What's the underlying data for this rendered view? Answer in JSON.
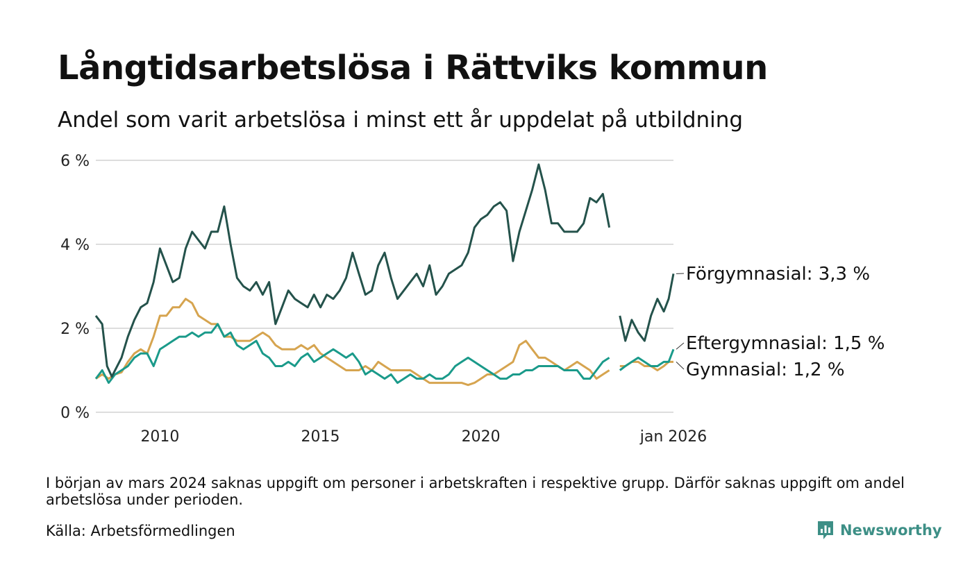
{
  "header": {
    "title": "Långtidsarbetslösa i Rättviks kommun",
    "subtitle": "Andel som varit arbetslösa i minst ett år uppdelat på utbildning"
  },
  "footer": {
    "note": "I början av mars 2024 saknas uppgift om personer i arbetskraften i respektive grupp. Därför saknas uppgift om andel arbetslösa under perioden.",
    "source": "Källa: Arbetsförmedlingen",
    "brand": "Newsworthy",
    "brand_color": "#3d8f86"
  },
  "chart_data": {
    "type": "line",
    "title": "Långtidsarbetslösa i Rättviks kommun",
    "xlabel": "",
    "ylabel": "",
    "ylim": [
      0,
      6
    ],
    "xlim": [
      2008.0,
      2026.0
    ],
    "yticks": [
      {
        "value": 0,
        "label": "0 %"
      },
      {
        "value": 2,
        "label": "2 %"
      },
      {
        "value": 4,
        "label": "4 %"
      },
      {
        "value": 6,
        "label": "6 %"
      }
    ],
    "xticks": [
      {
        "value": 2010,
        "label": "2010"
      },
      {
        "value": 2015,
        "label": "2015"
      },
      {
        "value": 2020,
        "label": "2020"
      },
      {
        "value": 2026,
        "label": "jan 2026"
      }
    ],
    "gap": [
      2024.17,
      2024.33
    ],
    "series": [
      {
        "name": "Förgymnasial",
        "label": "Förgymnasial: 3,3 %",
        "color": "#24524b",
        "x": [
          2008.0,
          2008.2,
          2008.35,
          2008.5,
          2008.8,
          2009.0,
          2009.2,
          2009.4,
          2009.6,
          2009.8,
          2010.0,
          2010.2,
          2010.4,
          2010.6,
          2010.8,
          2011.0,
          2011.2,
          2011.4,
          2011.6,
          2011.8,
          2012.0,
          2012.2,
          2012.4,
          2012.6,
          2012.8,
          2013.0,
          2013.2,
          2013.4,
          2013.6,
          2013.8,
          2014.0,
          2014.2,
          2014.4,
          2014.6,
          2014.8,
          2015.0,
          2015.2,
          2015.4,
          2015.6,
          2015.8,
          2016.0,
          2016.2,
          2016.4,
          2016.6,
          2016.8,
          2017.0,
          2017.2,
          2017.4,
          2017.6,
          2017.8,
          2018.0,
          2018.2,
          2018.4,
          2018.6,
          2018.8,
          2019.0,
          2019.2,
          2019.4,
          2019.6,
          2019.8,
          2020.0,
          2020.2,
          2020.4,
          2020.6,
          2020.8,
          2021.0,
          2021.2,
          2021.4,
          2021.6,
          2021.8,
          2022.0,
          2022.2,
          2022.4,
          2022.6,
          2022.8,
          2023.0,
          2023.2,
          2023.4,
          2023.6,
          2023.8,
          2024.0,
          2024.17,
          null,
          2024.33,
          2024.5,
          2024.7,
          2024.9,
          2025.1,
          2025.3,
          2025.5,
          2025.7,
          2025.85,
          2026.0
        ],
        "values": [
          2.3,
          2.1,
          1.1,
          0.85,
          1.3,
          1.8,
          2.2,
          2.5,
          2.6,
          3.1,
          3.9,
          3.5,
          3.1,
          3.2,
          3.9,
          4.3,
          4.1,
          3.9,
          4.3,
          4.3,
          4.9,
          4.0,
          3.2,
          3.0,
          2.9,
          3.1,
          2.8,
          3.1,
          2.1,
          2.5,
          2.9,
          2.7,
          2.6,
          2.5,
          2.8,
          2.5,
          2.8,
          2.7,
          2.9,
          3.2,
          3.8,
          3.3,
          2.8,
          2.9,
          3.5,
          3.8,
          3.2,
          2.7,
          2.9,
          3.1,
          3.3,
          3.0,
          3.5,
          2.8,
          3.0,
          3.3,
          3.4,
          3.5,
          3.8,
          4.4,
          4.6,
          4.7,
          4.9,
          5.0,
          4.8,
          3.6,
          4.3,
          4.8,
          5.3,
          5.9,
          5.3,
          4.5,
          4.5,
          4.3,
          4.3,
          4.3,
          4.5,
          5.1,
          5.0,
          5.2,
          4.4,
          null,
          null,
          2.3,
          1.7,
          2.2,
          1.9,
          1.7,
          2.3,
          2.7,
          2.4,
          2.7,
          3.3
        ]
      },
      {
        "name": "Eftergymnasial",
        "label": "Eftergymnasial: 1,5 %",
        "color": "#1a9a8a",
        "x": [
          2008.0,
          2008.2,
          2008.4,
          2008.6,
          2008.8,
          2009.0,
          2009.2,
          2009.4,
          2009.6,
          2009.8,
          2010.0,
          2010.2,
          2010.4,
          2010.6,
          2010.8,
          2011.0,
          2011.2,
          2011.4,
          2011.6,
          2011.8,
          2012.0,
          2012.2,
          2012.4,
          2012.6,
          2012.8,
          2013.0,
          2013.2,
          2013.4,
          2013.6,
          2013.8,
          2014.0,
          2014.2,
          2014.4,
          2014.6,
          2014.8,
          2015.0,
          2015.2,
          2015.4,
          2015.6,
          2015.8,
          2016.0,
          2016.2,
          2016.4,
          2016.6,
          2016.8,
          2017.0,
          2017.2,
          2017.4,
          2017.6,
          2017.8,
          2018.0,
          2018.2,
          2018.4,
          2018.6,
          2018.8,
          2019.0,
          2019.2,
          2019.4,
          2019.6,
          2019.8,
          2020.0,
          2020.2,
          2020.4,
          2020.6,
          2020.8,
          2021.0,
          2021.2,
          2021.4,
          2021.6,
          2021.8,
          2022.0,
          2022.2,
          2022.4,
          2022.6,
          2022.8,
          2023.0,
          2023.2,
          2023.4,
          2023.6,
          2023.8,
          2024.0,
          2024.17,
          null,
          2024.33,
          2024.5,
          2024.7,
          2024.9,
          2025.1,
          2025.3,
          2025.5,
          2025.7,
          2025.85,
          2026.0
        ],
        "values": [
          0.8,
          1.0,
          0.7,
          0.9,
          1.0,
          1.1,
          1.3,
          1.4,
          1.4,
          1.1,
          1.5,
          1.6,
          1.7,
          1.8,
          1.8,
          1.9,
          1.8,
          1.9,
          1.9,
          2.1,
          1.8,
          1.9,
          1.6,
          1.5,
          1.6,
          1.7,
          1.4,
          1.3,
          1.1,
          1.1,
          1.2,
          1.1,
          1.3,
          1.4,
          1.2,
          1.3,
          1.4,
          1.5,
          1.4,
          1.3,
          1.4,
          1.2,
          0.9,
          1.0,
          0.9,
          0.8,
          0.9,
          0.7,
          0.8,
          0.9,
          0.8,
          0.8,
          0.9,
          0.8,
          0.8,
          0.9,
          1.1,
          1.2,
          1.3,
          1.2,
          1.1,
          1.0,
          0.9,
          0.8,
          0.8,
          0.9,
          0.9,
          1.0,
          1.0,
          1.1,
          1.1,
          1.1,
          1.1,
          1.0,
          1.0,
          1.0,
          0.8,
          0.8,
          1.0,
          1.2,
          1.3,
          null,
          null,
          1.0,
          1.1,
          1.2,
          1.3,
          1.2,
          1.1,
          1.1,
          1.2,
          1.2,
          1.5
        ]
      },
      {
        "name": "Gymnasial",
        "label": "Gymnasial: 1,2 %",
        "color": "#d6a44f",
        "x": [
          2008.0,
          2008.2,
          2008.4,
          2008.6,
          2008.8,
          2009.0,
          2009.2,
          2009.4,
          2009.6,
          2009.8,
          2010.0,
          2010.2,
          2010.4,
          2010.6,
          2010.8,
          2011.0,
          2011.2,
          2011.4,
          2011.6,
          2011.8,
          2012.0,
          2012.2,
          2012.4,
          2012.6,
          2012.8,
          2013.0,
          2013.2,
          2013.4,
          2013.6,
          2013.8,
          2014.0,
          2014.2,
          2014.4,
          2014.6,
          2014.8,
          2015.0,
          2015.2,
          2015.4,
          2015.6,
          2015.8,
          2016.0,
          2016.2,
          2016.4,
          2016.6,
          2016.8,
          2017.0,
          2017.2,
          2017.4,
          2017.6,
          2017.8,
          2018.0,
          2018.2,
          2018.4,
          2018.6,
          2018.8,
          2019.0,
          2019.2,
          2019.4,
          2019.6,
          2019.8,
          2020.0,
          2020.2,
          2020.4,
          2020.6,
          2020.8,
          2021.0,
          2021.2,
          2021.4,
          2021.6,
          2021.8,
          2022.0,
          2022.2,
          2022.4,
          2022.6,
          2022.8,
          2023.0,
          2023.2,
          2023.4,
          2023.6,
          2023.8,
          2024.0,
          2024.17,
          null,
          2024.33,
          2024.5,
          2024.7,
          2024.9,
          2025.1,
          2025.3,
          2025.5,
          2025.7,
          2025.85,
          2026.0
        ],
        "values": [
          0.8,
          0.9,
          0.8,
          0.9,
          0.95,
          1.2,
          1.4,
          1.5,
          1.4,
          1.8,
          2.3,
          2.3,
          2.5,
          2.5,
          2.7,
          2.6,
          2.3,
          2.2,
          2.1,
          2.1,
          1.8,
          1.8,
          1.7,
          1.7,
          1.7,
          1.8,
          1.9,
          1.8,
          1.6,
          1.5,
          1.5,
          1.5,
          1.6,
          1.5,
          1.6,
          1.4,
          1.3,
          1.2,
          1.1,
          1.0,
          1.0,
          1.0,
          1.1,
          1.0,
          1.2,
          1.1,
          1.0,
          1.0,
          1.0,
          1.0,
          0.9,
          0.8,
          0.7,
          0.7,
          0.7,
          0.7,
          0.7,
          0.7,
          0.65,
          0.7,
          0.8,
          0.9,
          0.9,
          1.0,
          1.1,
          1.2,
          1.6,
          1.7,
          1.5,
          1.3,
          1.3,
          1.2,
          1.1,
          1.0,
          1.1,
          1.2,
          1.1,
          1.0,
          0.8,
          0.9,
          1.0,
          null,
          null,
          1.1,
          1.1,
          1.2,
          1.2,
          1.1,
          1.1,
          1.0,
          1.1,
          1.2,
          1.2
        ]
      }
    ]
  }
}
